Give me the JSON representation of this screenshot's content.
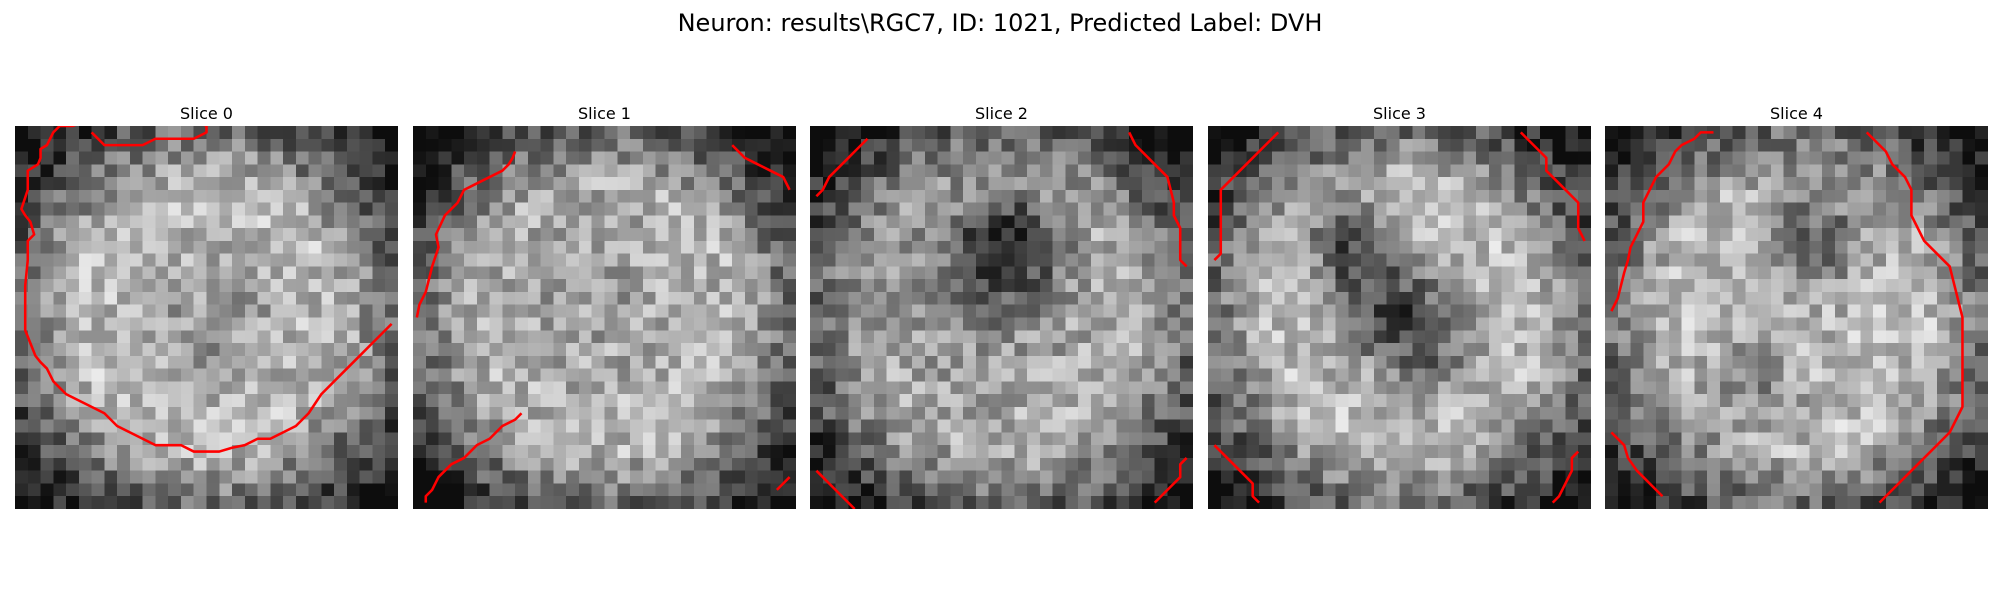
{
  "figure": {
    "title": "Neuron: results\\RGC7, ID: 1021, Predicted Label: DVH",
    "colormap": "gray",
    "contour_color": "#ff0000",
    "grid_size": 30
  },
  "slices": [
    {
      "label": "Slice 0",
      "contours": [
        [
          [
            6,
            0.5
          ],
          [
            6.5,
            1
          ],
          [
            7,
            1.5
          ],
          [
            9,
            1.5
          ],
          [
            10,
            1.5
          ],
          [
            11,
            1
          ],
          [
            13,
            1
          ],
          [
            14,
            1
          ],
          [
            15,
            0.5
          ],
          [
            15,
            0
          ],
          [
            14,
            -0.5
          ],
          [
            12,
            -0.5
          ],
          [
            10,
            -0.5
          ],
          [
            8,
            -0.5
          ]
        ],
        [
          [
            5.8,
            -0.5
          ],
          [
            4.5,
            0
          ],
          [
            3.5,
            0
          ],
          [
            3,
            0.5
          ],
          [
            2.5,
            1.5
          ],
          [
            2,
            1.8
          ],
          [
            2,
            2.5
          ],
          [
            1.8,
            3
          ],
          [
            1,
            3.5
          ],
          [
            1,
            5
          ],
          [
            0.5,
            6.5
          ],
          [
            0.8,
            7
          ],
          [
            1.2,
            7.5
          ],
          [
            1.5,
            8.5
          ],
          [
            1,
            9
          ],
          [
            1,
            10.5
          ],
          [
            0.8,
            12.5
          ],
          [
            0.8,
            14
          ],
          [
            0.8,
            16
          ],
          [
            1.2,
            17
          ],
          [
            1.6,
            18
          ],
          [
            2,
            18.5
          ],
          [
            2.5,
            19
          ],
          [
            3,
            20
          ],
          [
            4,
            21
          ],
          [
            5,
            21.5
          ],
          [
            6,
            22
          ],
          [
            7,
            22.5
          ],
          [
            7.5,
            23
          ],
          [
            8,
            23.5
          ],
          [
            9,
            24
          ],
          [
            10,
            24.5
          ],
          [
            11,
            25
          ],
          [
            12,
            25
          ],
          [
            13,
            25
          ],
          [
            14,
            25.5
          ],
          [
            15,
            25.5
          ],
          [
            16,
            25.5
          ],
          [
            17,
            25.2
          ],
          [
            18,
            25
          ],
          [
            19,
            24.5
          ],
          [
            20,
            24.5
          ],
          [
            21,
            24
          ],
          [
            22,
            23.5
          ],
          [
            23,
            22.5
          ],
          [
            24,
            21
          ],
          [
            25,
            20
          ],
          [
            26,
            19
          ],
          [
            27,
            18
          ],
          [
            28,
            17
          ],
          [
            29,
            16
          ],
          [
            29.5,
            15.5
          ]
        ]
      ]
    },
    {
      "label": "Slice 1",
      "contours": [
        [
          [
            1,
            29.5
          ],
          [
            1,
            29
          ],
          [
            1.5,
            28.5
          ],
          [
            2,
            27.5
          ],
          [
            2.5,
            27
          ],
          [
            3,
            26.5
          ],
          [
            4,
            26
          ],
          [
            5,
            25
          ],
          [
            6,
            24.5
          ],
          [
            7,
            23.5
          ],
          [
            8,
            23
          ],
          [
            8.5,
            22.5
          ]
        ],
        [
          [
            0.3,
            15
          ],
          [
            0.5,
            14
          ],
          [
            1,
            13
          ],
          [
            1.5,
            11
          ],
          [
            2,
            9.5
          ],
          [
            1.8,
            8.5
          ],
          [
            2.5,
            7
          ],
          [
            3,
            6.5
          ],
          [
            3.5,
            6
          ],
          [
            4,
            5
          ],
          [
            5,
            4.5
          ],
          [
            6,
            4
          ],
          [
            7,
            3.5
          ],
          [
            7.5,
            3
          ],
          [
            7.8,
            2.5
          ],
          [
            8,
            2
          ]
        ],
        [
          [
            25,
            1.5
          ],
          [
            26,
            2.5
          ],
          [
            27,
            3
          ],
          [
            28,
            3.5
          ],
          [
            29,
            4
          ],
          [
            29.5,
            5
          ]
        ],
        [
          [
            29.5,
            27.5
          ],
          [
            29,
            28
          ],
          [
            28.5,
            28.5
          ]
        ]
      ]
    },
    {
      "label": "Slice 2",
      "contours": [
        [
          [
            0.5,
            27
          ],
          [
            1,
            27.5
          ],
          [
            1.5,
            28
          ],
          [
            2,
            28.5
          ],
          [
            3,
            29.5
          ],
          [
            3.5,
            30
          ]
        ],
        [
          [
            0.5,
            5.5
          ],
          [
            1,
            5
          ],
          [
            1.5,
            4
          ],
          [
            2,
            3.5
          ],
          [
            2.5,
            3
          ],
          [
            3,
            2.5
          ],
          [
            3.5,
            2
          ],
          [
            4,
            1.5
          ],
          [
            4.5,
            1
          ]
        ],
        [
          [
            25,
            0.5
          ],
          [
            25.5,
            1.5
          ],
          [
            26,
            2
          ],
          [
            27,
            3
          ],
          [
            27.5,
            3.5
          ],
          [
            28,
            4
          ],
          [
            28.5,
            6
          ],
          [
            28.5,
            7
          ],
          [
            29,
            8
          ],
          [
            29,
            9
          ],
          [
            29,
            10.5
          ],
          [
            29.5,
            11
          ]
        ],
        [
          [
            27,
            29.5
          ],
          [
            28,
            28.5
          ],
          [
            28.5,
            28
          ],
          [
            29,
            27.5
          ],
          [
            29,
            26.5
          ],
          [
            29.5,
            26
          ]
        ]
      ]
    },
    {
      "label": "Slice 3",
      "contours": [
        [
          [
            0.5,
            25
          ],
          [
            1,
            25.5
          ],
          [
            1.5,
            26
          ],
          [
            2.5,
            27
          ],
          [
            3,
            27.5
          ],
          [
            3.5,
            28
          ],
          [
            3.5,
            29
          ],
          [
            4,
            29.5
          ]
        ],
        [
          [
            0.5,
            10.5
          ],
          [
            1,
            10
          ],
          [
            1,
            8
          ],
          [
            1,
            6
          ],
          [
            1,
            5
          ],
          [
            2,
            4
          ],
          [
            3,
            3
          ],
          [
            4,
            2
          ],
          [
            4.5,
            1.5
          ],
          [
            5,
            1
          ],
          [
            5.5,
            0.5
          ]
        ],
        [
          [
            24.5,
            0.5
          ],
          [
            25,
            1
          ],
          [
            25.5,
            1.5
          ],
          [
            26,
            2
          ],
          [
            26.5,
            2.5
          ],
          [
            26.5,
            3.5
          ],
          [
            27,
            4
          ],
          [
            28,
            5
          ],
          [
            29,
            6
          ],
          [
            29,
            7
          ],
          [
            29,
            8
          ],
          [
            29.5,
            9
          ]
        ],
        [
          [
            27,
            29.5
          ],
          [
            27.5,
            29
          ],
          [
            28,
            28
          ],
          [
            28.5,
            27
          ],
          [
            28.5,
            26
          ],
          [
            29,
            25.5
          ]
        ]
      ]
    },
    {
      "label": "Slice 4",
      "contours": [
        [
          [
            0.5,
            24
          ],
          [
            1,
            24.5
          ],
          [
            1.5,
            25
          ],
          [
            1.8,
            26
          ],
          [
            2.5,
            27
          ],
          [
            3,
            27.5
          ],
          [
            3.5,
            28
          ],
          [
            4,
            28.5
          ],
          [
            4.5,
            29
          ]
        ],
        [
          [
            0.5,
            14.5
          ],
          [
            1,
            13.5
          ],
          [
            1.5,
            11.5
          ],
          [
            1.8,
            10.5
          ],
          [
            2,
            9.5
          ],
          [
            2.5,
            8.5
          ],
          [
            3,
            7.5
          ],
          [
            3,
            6
          ],
          [
            3.5,
            5
          ],
          [
            4,
            4
          ],
          [
            4.5,
            3.5
          ],
          [
            5,
            3
          ],
          [
            5.5,
            2
          ],
          [
            6,
            1.5
          ],
          [
            7,
            1
          ],
          [
            7.5,
            0.5
          ],
          [
            8.5,
            0.5
          ]
        ],
        [
          [
            20.5,
            0.5
          ],
          [
            21,
            1
          ],
          [
            21.5,
            1.5
          ],
          [
            22,
            2
          ],
          [
            22.5,
            3
          ],
          [
            23.5,
            4
          ],
          [
            24,
            5
          ],
          [
            24,
            7
          ],
          [
            24.5,
            8
          ],
          [
            25,
            9
          ],
          [
            26,
            10
          ],
          [
            27,
            11
          ],
          [
            27.5,
            13
          ],
          [
            28,
            15
          ],
          [
            28,
            17
          ],
          [
            28,
            19
          ],
          [
            28,
            22
          ],
          [
            27.5,
            23
          ],
          [
            27,
            24
          ],
          [
            26,
            25
          ],
          [
            25,
            26
          ],
          [
            24,
            27
          ],
          [
            23,
            28
          ],
          [
            22,
            29
          ],
          [
            21.5,
            29.5
          ]
        ]
      ]
    }
  ]
}
